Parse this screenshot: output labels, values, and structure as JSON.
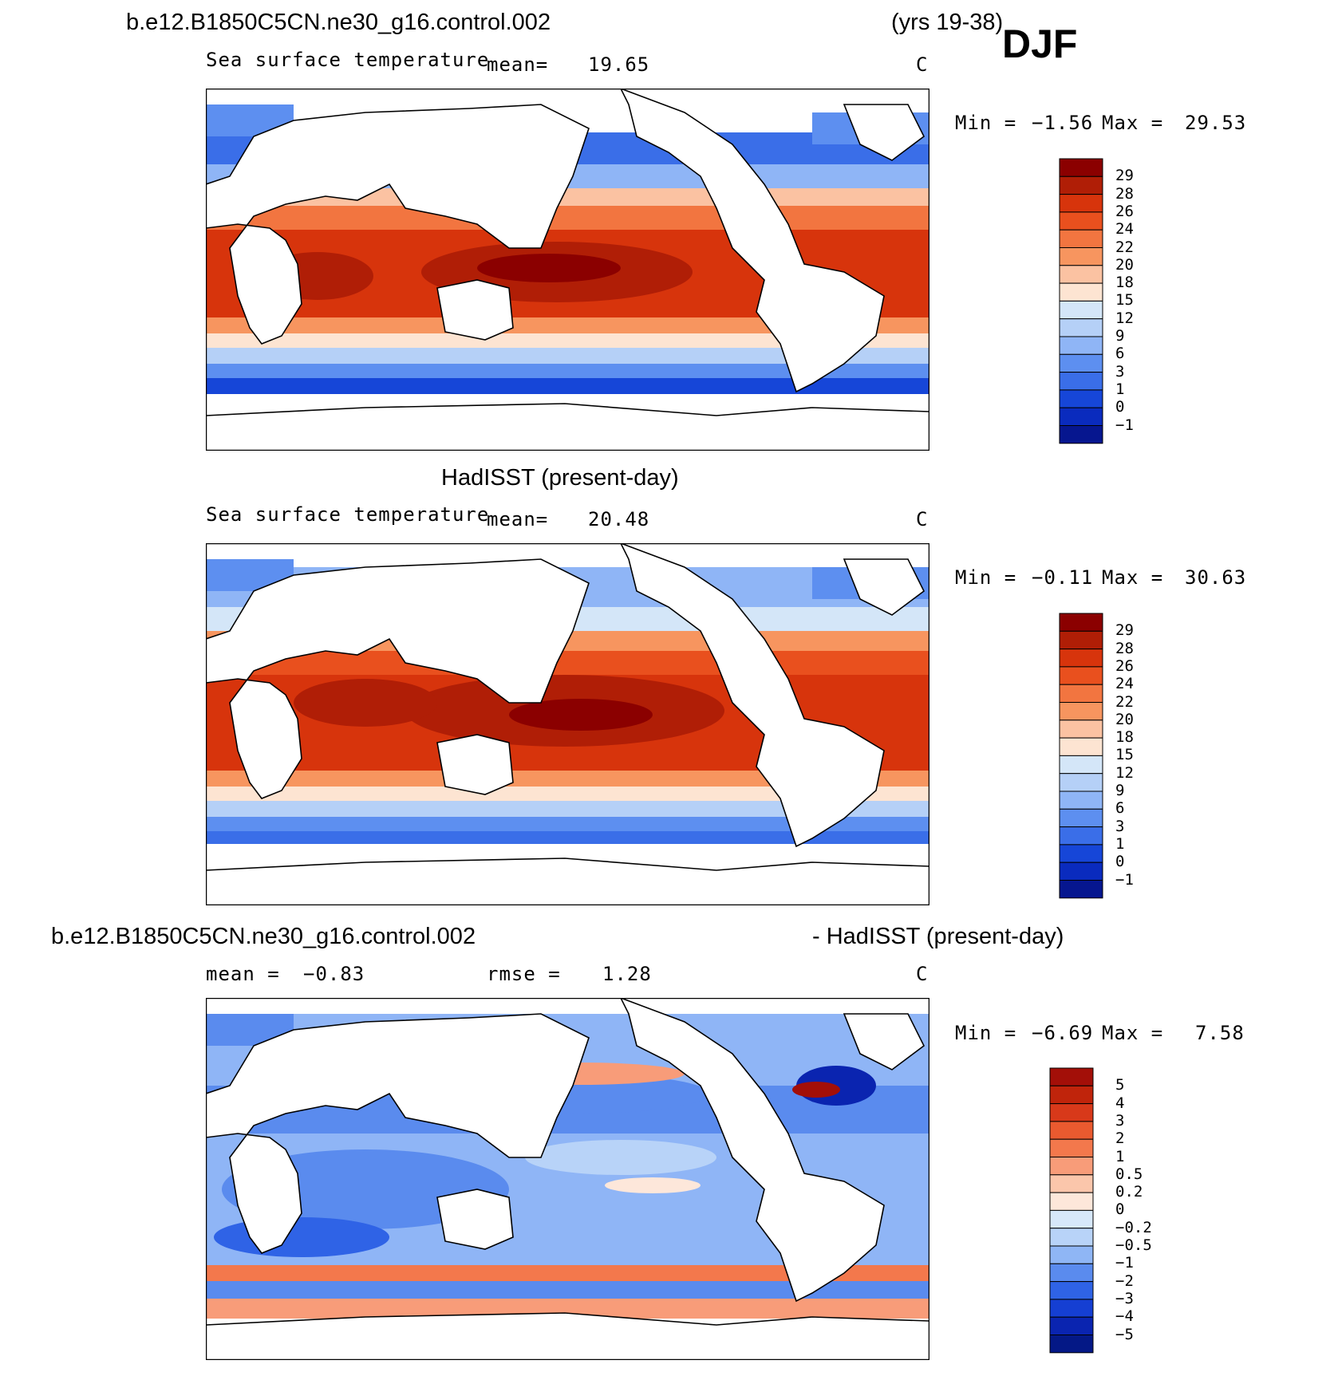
{
  "header": {
    "case_name": "b.e12.B1850C5CN.ne30_g16.control.002",
    "years": "(yrs 19-38)",
    "season": "DJF"
  },
  "panels": [
    {
      "id": "model",
      "title": "",
      "variable": "Sea surface temperature",
      "stat1_label": "mean=",
      "stat1_value": "19.65",
      "stat2_label": "",
      "stat2_value": "",
      "units": "C",
      "min_label": "Min =",
      "min_value": "−1.56",
      "max_label": "Max =",
      "max_value": "29.53",
      "colorbar_labels": [
        "29",
        "28",
        "26",
        "24",
        "22",
        "20",
        "18",
        "15",
        "12",
        "9",
        "6",
        "3",
        "1",
        "0",
        "−1"
      ],
      "colorbar_colors": [
        "#8b0000",
        "#b01e06",
        "#d7340c",
        "#e9501e",
        "#f27540",
        "#f7955f",
        "#fbc2a2",
        "#fde4d2",
        "#d4e6f8",
        "#b5d0f7",
        "#8fb5f6",
        "#5d8ff0",
        "#3a6ee8",
        "#1646d8",
        "#0a2bbe",
        "#06168f"
      ]
    },
    {
      "id": "obs",
      "title": "HadISST (present-day)",
      "variable": "Sea surface temperature",
      "stat1_label": "mean=",
      "stat1_value": "20.48",
      "stat2_label": "",
      "stat2_value": "",
      "units": "C",
      "min_label": "Min =",
      "min_value": "−0.11",
      "max_label": "Max =",
      "max_value": "30.63",
      "colorbar_labels": [
        "29",
        "28",
        "26",
        "24",
        "22",
        "20",
        "18",
        "15",
        "12",
        "9",
        "6",
        "3",
        "1",
        "0",
        "−1"
      ],
      "colorbar_colors": [
        "#8b0000",
        "#b01e06",
        "#d7340c",
        "#e9501e",
        "#f27540",
        "#f7955f",
        "#fbc2a2",
        "#fde4d2",
        "#d4e6f8",
        "#b5d0f7",
        "#8fb5f6",
        "#5d8ff0",
        "#3a6ee8",
        "#1646d8",
        "#0a2bbe",
        "#06168f"
      ]
    },
    {
      "id": "diff",
      "title_left": "b.e12.B1850C5CN.ne30_g16.control.002",
      "title_right": "- HadISST (present-day)",
      "variable": "",
      "stat1_label": "mean =",
      "stat1_value": "−0.83",
      "stat2_label": "rmse =",
      "stat2_value": "1.28",
      "units": "C",
      "min_label": "Min =",
      "min_value": "−6.69",
      "max_label": "Max =",
      "max_value": "7.58",
      "colorbar_labels": [
        "5",
        "4",
        "3",
        "2",
        "1",
        "0.5",
        "0.2",
        "0",
        "−0.2",
        "−0.5",
        "−1",
        "−2",
        "−3",
        "−4",
        "−5"
      ],
      "colorbar_colors": [
        "#a30f08",
        "#c0240b",
        "#d8391a",
        "#ea5a2f",
        "#f3784c",
        "#f89c79",
        "#fbc6ab",
        "#fde7da",
        "#d7e8fa",
        "#b8d3f8",
        "#8fb6f5",
        "#5a8bee",
        "#2f63e6",
        "#153fd3",
        "#0a24b0",
        "#041886"
      ]
    }
  ]
}
